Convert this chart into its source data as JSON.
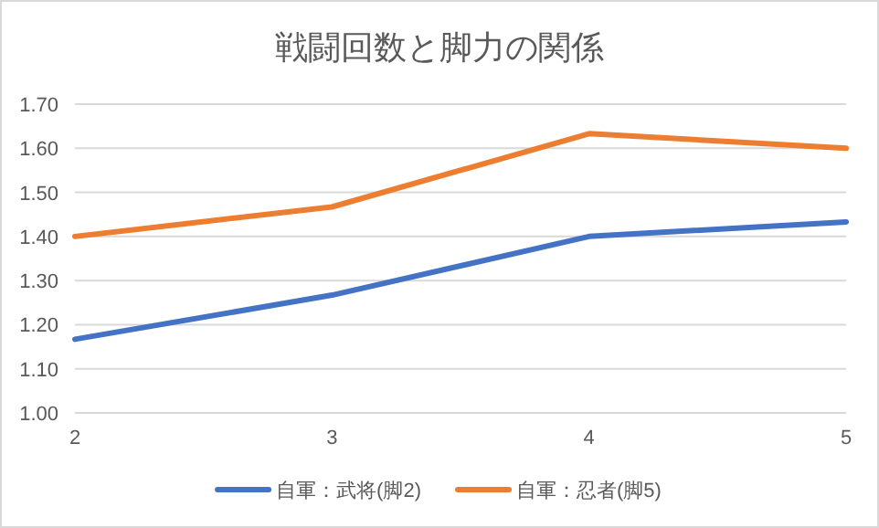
{
  "chart_data": {
    "type": "line",
    "title": "戦闘回数と脚力の関係",
    "categories": [
      "2",
      "3",
      "4",
      "5"
    ],
    "series": [
      {
        "name": "自軍：武将(脚2)",
        "color": "#4472c4",
        "values": [
          1.167,
          1.267,
          1.4,
          1.433
        ]
      },
      {
        "name": "自軍：忍者(脚5)",
        "color": "#ed7d31",
        "values": [
          1.4,
          1.467,
          1.633,
          1.6
        ]
      }
    ],
    "ylim": [
      1.0,
      1.7
    ],
    "yticks": [
      {
        "value": 1.0,
        "label": "1.00"
      },
      {
        "value": 1.1,
        "label": "1.10"
      },
      {
        "value": 1.2,
        "label": "1.20"
      },
      {
        "value": 1.3,
        "label": "1.30"
      },
      {
        "value": 1.4,
        "label": "1.40"
      },
      {
        "value": 1.5,
        "label": "1.50"
      },
      {
        "value": 1.6,
        "label": "1.60"
      },
      {
        "value": 1.7,
        "label": "1.70"
      }
    ],
    "grid": "y",
    "legend": "bottom"
  }
}
